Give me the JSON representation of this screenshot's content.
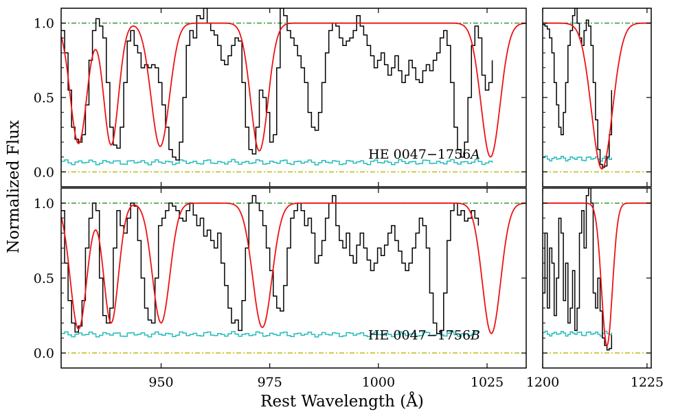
{
  "figure": {
    "ylabel": "Normalized Flux",
    "xlabel": "Rest Wavelength (Å)"
  },
  "colors": {
    "data": "#000000",
    "model": "#ee1111",
    "error": "#22bbbb",
    "continuum": "#339933",
    "zero": "#bbbb11"
  },
  "chart_data": [
    {
      "type": "line",
      "title": "HE 0047−1756A (main panel)",
      "label": "HE 0047−1756",
      "label_suffix": "A",
      "xlim": [
        927,
        1034
      ],
      "ylim": [
        -0.1,
        1.1
      ],
      "xticks": [
        950,
        975,
        1000,
        1025
      ],
      "yticks": [
        0.0,
        0.5,
        1.0
      ],
      "ytick_labels": [
        "0.0",
        "0.5",
        "1.0"
      ],
      "continuum": 1.0,
      "zero": 0.0,
      "model_lines": [
        {
          "center": 931,
          "depth": 0.81,
          "width": 1.9
        },
        {
          "center": 938.5,
          "depth": 0.82,
          "width": 1.7
        },
        {
          "center": 949.8,
          "depth": 0.83,
          "width": 2.1
        },
        {
          "center": 972.6,
          "depth": 0.86,
          "width": 2.0
        },
        {
          "center": 1025.8,
          "depth": 0.9,
          "width": 2.2
        }
      ],
      "flux": {
        "x_start": 927,
        "step": 0.8,
        "values": [
          0.95,
          0.8,
          0.55,
          0.3,
          0.22,
          0.2,
          0.25,
          0.45,
          0.75,
          0.95,
          1.03,
          0.98,
          0.9,
          0.6,
          0.3,
          0.18,
          0.16,
          0.3,
          0.6,
          0.88,
          0.95,
          0.85,
          0.8,
          0.7,
          0.72,
          0.7,
          0.72,
          0.7,
          0.6,
          0.45,
          0.3,
          0.15,
          0.1,
          0.08,
          0.2,
          0.5,
          0.85,
          0.95,
          0.9,
          1.05,
          1.03,
          1.1,
          1.0,
          0.95,
          0.92,
          0.85,
          0.75,
          0.72,
          0.78,
          0.85,
          0.9,
          0.88,
          0.6,
          0.3,
          0.15,
          0.12,
          0.3,
          0.55,
          0.5,
          0.4,
          0.2,
          0.25,
          0.7,
          1.1,
          1.05,
          0.95,
          0.9,
          0.85,
          0.78,
          0.7,
          0.6,
          0.4,
          0.3,
          0.28,
          0.4,
          0.6,
          0.8,
          0.95,
          1.0,
          0.98,
          0.9,
          0.85,
          0.88,
          0.9,
          0.95,
          1.05,
          0.98,
          0.92,
          0.85,
          0.78,
          0.7,
          0.75,
          0.8,
          0.72,
          0.65,
          0.7,
          0.78,
          0.68,
          0.6,
          0.65,
          0.75,
          0.7,
          0.62,
          0.6,
          0.68,
          0.72,
          0.68,
          0.75,
          0.8,
          0.9,
          0.95,
          0.85,
          0.6,
          0.3,
          0.15,
          0.1,
          0.2,
          0.5,
          0.85,
          0.98,
          0.9,
          0.65,
          0.55,
          0.6,
          0.75
        ]
      },
      "error": {
        "x_start": 927,
        "step": 0.8,
        "constant": 0.065
      }
    },
    {
      "type": "line",
      "title": "HE 0047−1756A (side panel)",
      "xlim": [
        1200,
        1226
      ],
      "ylim": [
        -0.1,
        1.1
      ],
      "xticks": [
        1200,
        1225
      ],
      "continuum": 1.0,
      "zero": 0.0,
      "model_lines": [
        {
          "center": 1214.2,
          "depth": 0.98,
          "width": 2.5
        }
      ],
      "flux": {
        "x_start": 1200,
        "step": 0.55,
        "values": [
          0.99,
          0.98,
          0.96,
          0.9,
          0.8,
          0.6,
          0.45,
          0.3,
          0.25,
          0.4,
          0.6,
          0.85,
          0.95,
          1.05,
          1.1,
          1.0,
          0.9,
          0.85,
          0.95,
          1.02,
          0.98,
          0.85,
          0.6,
          0.35,
          0.15,
          0.05,
          0.03,
          0.04,
          0.1,
          0.25,
          0.55
        ]
      },
      "error": {
        "x_start": 1200,
        "step": 0.55,
        "constant": 0.09
      }
    },
    {
      "type": "line",
      "title": "HE 0047−1756B (main panel)",
      "label": "HE 0047−1756",
      "label_suffix": "B",
      "xlim": [
        927,
        1034
      ],
      "ylim": [
        -0.1,
        1.1
      ],
      "xticks": [
        950,
        975,
        1000,
        1025
      ],
      "xtick_labels": [
        "950",
        "975",
        "1000",
        "1025"
      ],
      "yticks": [
        0.0,
        0.5,
        1.0
      ],
      "ytick_labels": [
        "0.0",
        "0.5",
        "1.0"
      ],
      "continuum": 1.0,
      "zero": 0.0,
      "model_lines": [
        {
          "center": 931,
          "depth": 0.84,
          "width": 1.9
        },
        {
          "center": 938.5,
          "depth": 0.8,
          "width": 1.7
        },
        {
          "center": 950.0,
          "depth": 0.8,
          "width": 2.0
        },
        {
          "center": 973.3,
          "depth": 0.83,
          "width": 2.2
        },
        {
          "center": 1026.0,
          "depth": 0.87,
          "width": 2.1
        }
      ],
      "flux": {
        "x_start": 927,
        "step": 0.8,
        "values": [
          0.95,
          0.6,
          0.35,
          0.2,
          0.14,
          0.18,
          0.35,
          0.7,
          0.9,
          1.0,
          0.95,
          0.5,
          0.25,
          0.2,
          0.3,
          0.7,
          0.95,
          0.85,
          0.8,
          0.9,
          1.0,
          0.98,
          0.75,
          0.5,
          0.3,
          0.22,
          0.2,
          0.5,
          0.85,
          0.9,
          0.95,
          1.0,
          0.98,
          0.95,
          0.9,
          0.88,
          0.95,
          1.0,
          0.92,
          0.85,
          0.9,
          0.78,
          0.82,
          0.75,
          0.7,
          0.8,
          0.6,
          0.45,
          0.3,
          0.2,
          0.22,
          0.15,
          0.35,
          0.7,
          1.0,
          1.05,
          1.0,
          0.95,
          0.85,
          0.7,
          0.55,
          0.38,
          0.3,
          0.28,
          0.45,
          0.7,
          0.9,
          0.95,
          1.0,
          0.95,
          0.85,
          0.9,
          0.8,
          0.6,
          0.65,
          0.75,
          0.9,
          1.0,
          1.05,
          0.85,
          0.75,
          0.7,
          0.8,
          0.65,
          0.6,
          0.72,
          0.8,
          0.7,
          0.62,
          0.55,
          0.6,
          0.7,
          0.65,
          0.72,
          0.8,
          0.85,
          0.75,
          0.68,
          0.6,
          0.55,
          0.6,
          0.7,
          0.8,
          0.9,
          0.85,
          0.7,
          0.4,
          0.2,
          0.13,
          0.15,
          0.4,
          0.75,
          0.95,
          1.0,
          0.92,
          0.95,
          0.88,
          0.9,
          0.95,
          0.9,
          0.85
        ]
      },
      "error": {
        "x_start": 927,
        "step": 0.8,
        "constant": 0.125
      }
    },
    {
      "type": "line",
      "title": "HE 0047−1756B (side panel)",
      "xlim": [
        1200,
        1226
      ],
      "ylim": [
        -0.1,
        1.1
      ],
      "xticks": [
        1200,
        1225
      ],
      "xtick_labels": [
        "1200",
        "1225"
      ],
      "continuum": 1.0,
      "zero": 0.0,
      "model_lines": [
        {
          "center": 1215.4,
          "depth": 0.95,
          "width": 1.3
        }
      ],
      "flux": {
        "x_start": 1200,
        "step": 0.55,
        "values": [
          0.4,
          0.8,
          0.3,
          0.7,
          0.6,
          0.25,
          0.5,
          0.9,
          0.8,
          0.35,
          0.6,
          0.2,
          0.3,
          0.55,
          0.15,
          0.3,
          0.8,
          0.95,
          0.7,
          1.05,
          1.1,
          1.0,
          0.4,
          0.3,
          0.5,
          0.28,
          0.1,
          0.05,
          0.02,
          0.03,
          0.12
        ]
      },
      "error": {
        "x_start": 1200,
        "step": 0.55,
        "constant": 0.13
      }
    }
  ]
}
